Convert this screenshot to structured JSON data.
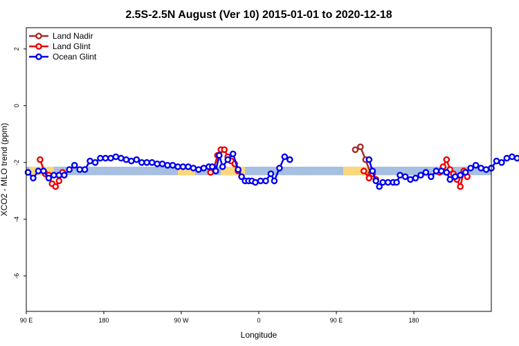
{
  "chart_data": {
    "type": "line",
    "title": "2.5S-2.5N August (Ver 10)   2015-01-01 to 2020-12-18",
    "xlabel": "Longitude",
    "ylabel": "XCO2 - MLO trend (ppm)",
    "xlim": [
      -90,
      180
    ],
    "ylim": [
      -7.25,
      2.75
    ],
    "x_ticks": [
      {
        "value": -90,
        "label": "90 E"
      },
      {
        "value": -45,
        "label": "180"
      },
      {
        "value": 0,
        "label": "90 W"
      },
      {
        "value": 45,
        "label": "0"
      },
      {
        "value": 90,
        "label": "90 E"
      },
      {
        "value": 135,
        "label": "180"
      }
    ],
    "y_ticks": [
      {
        "value": 2,
        "label": "2"
      },
      {
        "value": 0,
        "label": "0"
      },
      {
        "value": -2,
        "label": "-2"
      },
      {
        "value": -4,
        "label": "-4"
      },
      {
        "value": -6,
        "label": "-6"
      }
    ],
    "legend_position": "top-left",
    "grid": false,
    "background_band": {
      "y_range": [
        -2.45,
        -2.15
      ],
      "ocean_color": "#a7bfe0",
      "land_color": "#fbd77e",
      "land_x_ranges": [
        [
          -88,
          -74
        ],
        [
          23,
          37
        ],
        [
          94,
          109
        ],
        [
          -2,
          8
        ]
      ]
    },
    "series": [
      {
        "name": "Land Nadir",
        "color": "#a52a2a",
        "segments": [
          [
            [
              101,
              -1.55
            ],
            [
              104,
              -1.45
            ],
            [
              107,
              -1.9
            ],
            [
              110,
              -2.4
            ]
          ]
        ]
      },
      {
        "name": "Land Glint",
        "color": "#ee0000",
        "segments": [
          [
            [
              -82,
              -1.9
            ],
            [
              -79,
              -2.4
            ],
            [
              -77,
              -2.45
            ],
            [
              -75,
              -2.75
            ],
            [
              -73,
              -2.85
            ],
            [
              -71,
              -2.65
            ],
            [
              -69,
              -2.35
            ]
          ],
          [
            [
              17,
              -2.35
            ],
            [
              19,
              -2.2
            ],
            [
              21,
              -1.75
            ],
            [
              23,
              -1.55
            ],
            [
              25,
              -1.55
            ],
            [
              27,
              -1.8
            ],
            [
              29,
              -1.95
            ],
            [
              31,
              -2.05
            ],
            [
              33,
              -2.3
            ]
          ],
          [
            [
              106,
              -2.3
            ],
            [
              109,
              -2.55
            ],
            [
              111,
              -2.4
            ],
            [
              113,
              -2.6
            ]
          ],
          [
            [
              150,
              -2.35
            ],
            [
              152,
              -2.15
            ],
            [
              154,
              -1.9
            ],
            [
              156,
              -2.25
            ],
            [
              158,
              -2.4
            ],
            [
              160,
              -2.6
            ],
            [
              162,
              -2.85
            ],
            [
              164,
              -2.3
            ],
            [
              166,
              -2.5
            ]
          ]
        ]
      },
      {
        "name": "Ocean Glint",
        "color": "#0000ee",
        "segments": [
          [
            [
              -89,
              -2.35
            ],
            [
              -86,
              -2.55
            ],
            [
              -83,
              -2.3
            ],
            [
              -80,
              -2.3
            ],
            [
              -77,
              -2.55
            ],
            [
              -74,
              -2.45
            ],
            [
              -71,
              -2.45
            ],
            [
              -68,
              -2.45
            ],
            [
              -65,
              -2.25
            ],
            [
              -62,
              -2.1
            ],
            [
              -59,
              -2.25
            ],
            [
              -56,
              -2.25
            ],
            [
              -53,
              -1.95
            ],
            [
              -50,
              -2.0
            ],
            [
              -47,
              -1.85
            ],
            [
              -44,
              -1.85
            ],
            [
              -41,
              -1.85
            ],
            [
              -38,
              -1.8
            ],
            [
              -35,
              -1.85
            ],
            [
              -32,
              -1.9
            ],
            [
              -29,
              -1.95
            ],
            [
              -26,
              -1.9
            ],
            [
              -23,
              -2.0
            ],
            [
              -20,
              -2.0
            ],
            [
              -17,
              -2.0
            ],
            [
              -14,
              -2.05
            ],
            [
              -11,
              -2.05
            ],
            [
              -8,
              -2.1
            ],
            [
              -5,
              -2.1
            ],
            [
              -2,
              -2.15
            ],
            [
              1,
              -2.15
            ],
            [
              4,
              -2.15
            ],
            [
              7,
              -2.2
            ],
            [
              10,
              -2.25
            ],
            [
              13,
              -2.2
            ],
            [
              16,
              -2.15
            ],
            [
              18,
              -2.15
            ],
            [
              20,
              -2.3
            ],
            [
              22,
              -1.75
            ],
            [
              24,
              -2.15
            ],
            [
              27,
              -1.9
            ],
            [
              30,
              -1.7
            ],
            [
              33,
              -2.25
            ],
            [
              35,
              -2.5
            ],
            [
              37,
              -2.65
            ],
            [
              39,
              -2.65
            ],
            [
              41,
              -2.65
            ],
            [
              43,
              -2.7
            ],
            [
              46,
              -2.65
            ],
            [
              49,
              -2.65
            ],
            [
              52,
              -2.4
            ],
            [
              54,
              -2.65
            ],
            [
              57,
              -2.2
            ],
            [
              60,
              -1.8
            ],
            [
              63,
              -1.9
            ]
          ],
          [
            [
              109,
              -1.9
            ],
            [
              111,
              -2.3
            ],
            [
              113,
              -2.65
            ],
            [
              115,
              -2.85
            ],
            [
              117,
              -2.7
            ],
            [
              120,
              -2.7
            ],
            [
              123,
              -2.7
            ],
            [
              125,
              -2.7
            ],
            [
              127,
              -2.45
            ],
            [
              130,
              -2.5
            ],
            [
              133,
              -2.6
            ],
            [
              136,
              -2.55
            ],
            [
              139,
              -2.45
            ],
            [
              142,
              -2.35
            ],
            [
              145,
              -2.5
            ],
            [
              148,
              -2.3
            ],
            [
              151,
              -2.3
            ],
            [
              154,
              -2.35
            ],
            [
              156,
              -2.6
            ],
            [
              159,
              -2.5
            ],
            [
              162,
              -2.45
            ],
            [
              165,
              -2.35
            ],
            [
              168,
              -2.2
            ],
            [
              171,
              -2.1
            ],
            [
              174,
              -2.2
            ],
            [
              177,
              -2.25
            ],
            [
              180,
              -2.2
            ]
          ],
          [
            [
              180,
              -2.2
            ],
            [
              183,
              -1.95
            ],
            [
              186,
              -2.0
            ],
            [
              189,
              -1.85
            ],
            [
              192,
              -1.8
            ],
            [
              195,
              -1.85
            ],
            [
              198,
              -1.75
            ]
          ]
        ]
      }
    ]
  }
}
